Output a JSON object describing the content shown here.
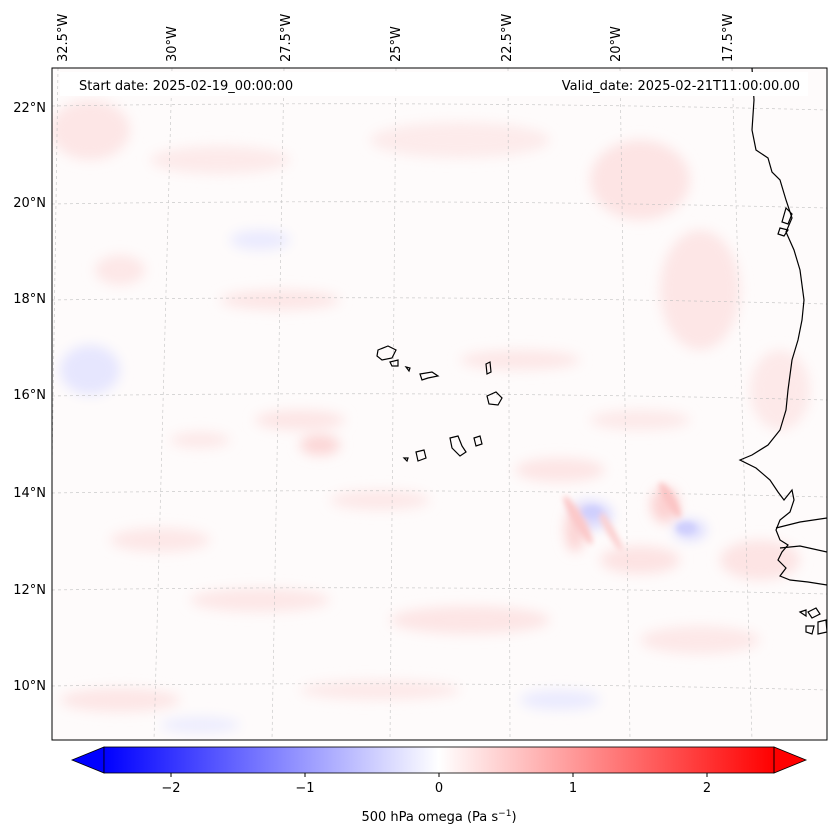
{
  "header": {
    "start_date": "Start date: 2025-02-19_00:00:00",
    "valid_date": "Valid_date: 2025-02-21T11:00:00.00"
  },
  "map": {
    "lon_labels": [
      "32.5°W",
      "30°W",
      "27.5°W",
      "25°W",
      "22.5°W",
      "20°W",
      "17.5°W"
    ],
    "lat_labels": [
      "22°N",
      "20°N",
      "18°N",
      "16°N",
      "14°N",
      "12°N",
      "10°N"
    ],
    "field": "500 hPa omega",
    "grid": true,
    "coastline_color": "#000000"
  },
  "colorbar": {
    "label_main": "500 hPa omega (Pa s",
    "label_exp": "−1",
    "label_close": ")",
    "ticks": [
      "−2",
      "−1",
      "0",
      "1",
      "2"
    ],
    "tick_values": [
      -2,
      -1,
      0,
      1,
      2
    ],
    "range": [
      -2.5,
      2.5
    ],
    "colormap": "bwr",
    "extend": "both",
    "color_min": "#0000ff",
    "color_mid": "#ffffff",
    "color_max": "#ff0000"
  }
}
